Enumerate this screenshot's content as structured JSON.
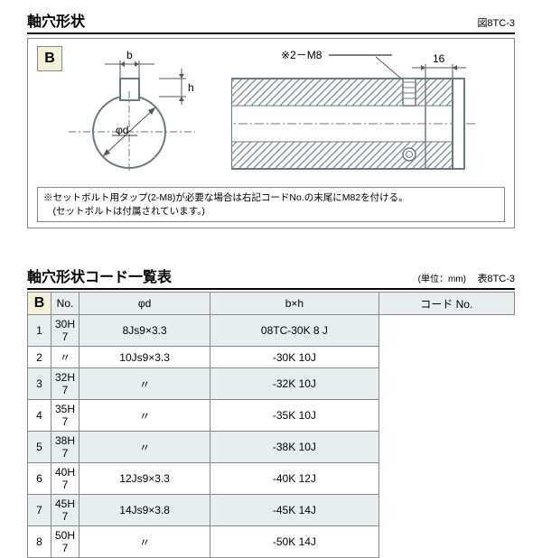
{
  "section1": {
    "title": "軸穴形状",
    "figref": "図8TC-3",
    "tag": "B",
    "labels": {
      "b": "b",
      "h": "h",
      "phid": "φd",
      "m8": "※2－M8",
      "d16": "16"
    },
    "note": "※セットボルト用タップ(2-M8)が必要な場合は右記コードNo.の末尾にM82を付ける。\n　(セットボルトは付属されています。)",
    "colors": {
      "line": "#6a7a82",
      "fill_hatch": "#dfe5e7",
      "dim": "#555",
      "bg": "#ffffff"
    }
  },
  "section2": {
    "title": "軸穴形状コード一覧表",
    "unit": "(単位：mm)",
    "tblref": "表8TC-3",
    "tag": "B",
    "columns": [
      "No.",
      "φd",
      "b×h",
      "コード No."
    ],
    "rows": [
      {
        "no": "1",
        "phid": "30H 7",
        "bxh": "8Js9×3.3",
        "code": "08TC-30K 8 J",
        "band": true
      },
      {
        "no": "2",
        "phid": "〃",
        "bxh": "10Js9×3.3",
        "code": "-30K 10J",
        "band": false
      },
      {
        "no": "3",
        "phid": "32H 7",
        "bxh": "〃",
        "code": "-32K 10J",
        "band": true
      },
      {
        "no": "4",
        "phid": "35H 7",
        "bxh": "〃",
        "code": "-35K 10J",
        "band": false
      },
      {
        "no": "5",
        "phid": "38H 7",
        "bxh": "〃",
        "code": "-38K 10J",
        "band": true
      },
      {
        "no": "6",
        "phid": "40H 7",
        "bxh": "12Js9×3.3",
        "code": "-40K 12J",
        "band": false
      },
      {
        "no": "7",
        "phid": "45H 7",
        "bxh": "14Js9×3.8",
        "code": "-45K 14J",
        "band": true
      },
      {
        "no": "8",
        "phid": "50H 7",
        "bxh": "〃",
        "code": "-50K 14J",
        "band": false
      }
    ]
  }
}
